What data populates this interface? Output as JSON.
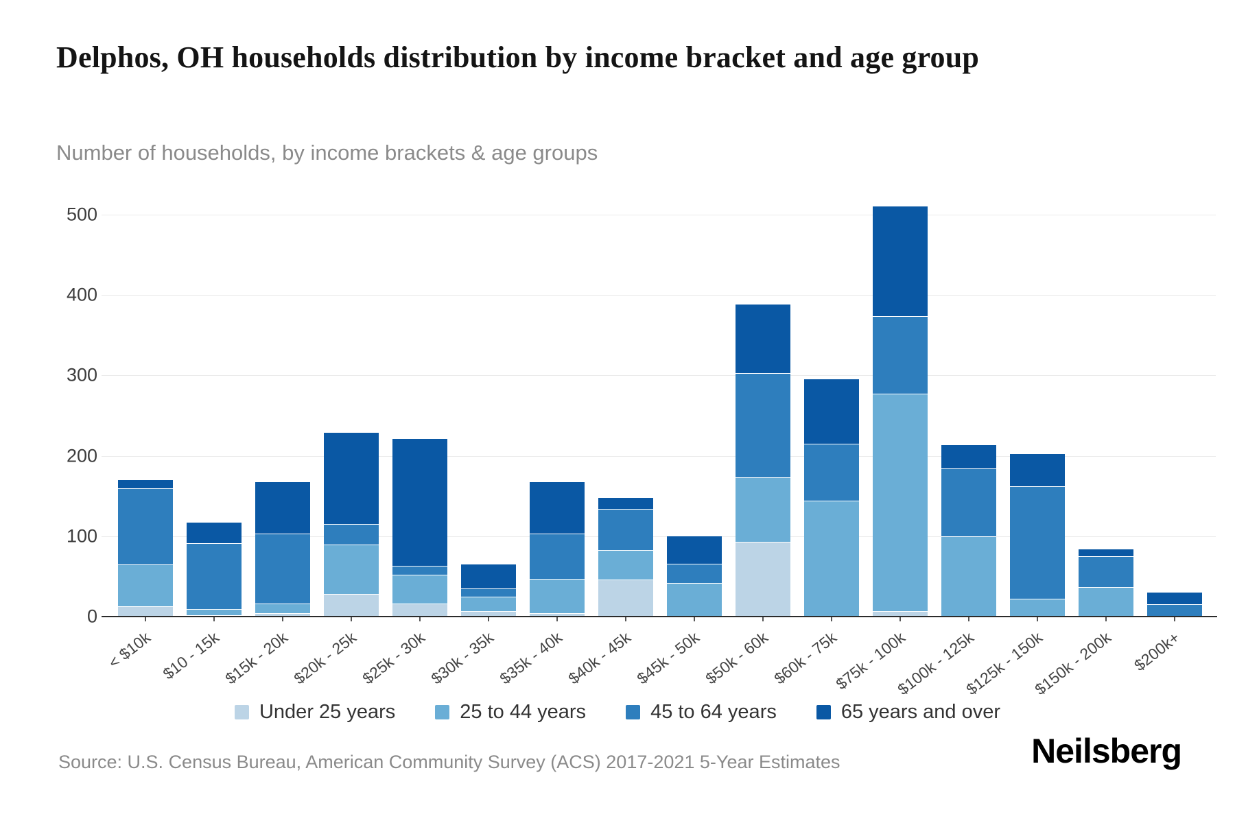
{
  "header": {
    "title": "Delphos, OH households distribution by income bracket and age group",
    "subtitle": "Number of households, by income brackets & age groups"
  },
  "chart_data": {
    "type": "bar",
    "stacked": true,
    "title": "Delphos, OH households distribution by income bracket and age group",
    "xlabel": "",
    "ylabel": "",
    "ylim": [
      0,
      500
    ],
    "yticks": [
      0,
      100,
      200,
      300,
      400,
      500
    ],
    "grid": true,
    "legend_position": "bottom",
    "categories": [
      "< $10k",
      "$10 - 15k",
      "$15k - 20k",
      "$20k - 25k",
      "$25k - 30k",
      "$30k - 35k",
      "$35k - 40k",
      "$40k - 45k",
      "$45k - 50k",
      "$50k - 60k",
      "$60k - 75k",
      "$75k - 100k",
      "$100k - 125k",
      "$125k - 150k",
      "$150k - 200k",
      "$200k+"
    ],
    "series": [
      {
        "name": "Under 25 years",
        "color": "#bcd4e6",
        "values": [
          13,
          2,
          4,
          28,
          16,
          7,
          4,
          46,
          0,
          93,
          0,
          7,
          0,
          0,
          0,
          0
        ]
      },
      {
        "name": "25 to 44 years",
        "color": "#6aaed6",
        "values": [
          52,
          7,
          12,
          62,
          36,
          18,
          43,
          37,
          42,
          80,
          144,
          270,
          100,
          22,
          37,
          0
        ]
      },
      {
        "name": "45 to 64 years",
        "color": "#2e7ebd",
        "values": [
          95,
          82,
          87,
          25,
          11,
          10,
          56,
          51,
          24,
          130,
          71,
          97,
          84,
          140,
          38,
          15
        ]
      },
      {
        "name": "65 years and over",
        "color": "#0a58a4",
        "values": [
          10,
          26,
          64,
          114,
          158,
          30,
          64,
          14,
          34,
          85,
          80,
          136,
          29,
          40,
          9,
          15
        ]
      }
    ]
  },
  "footer": {
    "source": "Source: U.S. Census Bureau, American Community Survey (ACS) 2017-2021 5-Year Estimates",
    "brand": "Neilsberg"
  }
}
